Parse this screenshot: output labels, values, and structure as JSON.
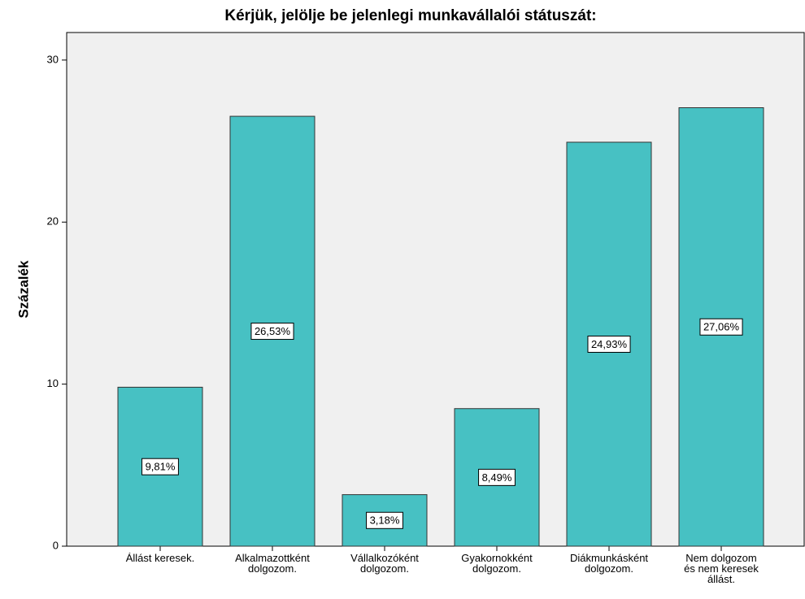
{
  "chart_data": {
    "type": "bar",
    "title": "Kérjük, jelölje be jelenlegi munkavállalói státuszát:",
    "y_label": "Százalék",
    "categories": [
      "Állást keresek.",
      "Alkalmazottként dolgozom.",
      "Vállalkozóként dolgozom.",
      "Gyakornokként dolgozom.",
      "Diákmunkásként dolgozom.",
      "Nem dolgozom és nem keresek állást."
    ],
    "values": [
      9.81,
      26.53,
      3.18,
      8.49,
      24.93,
      27.06
    ],
    "value_labels": [
      "9,81%",
      "26,53%",
      "3,18%",
      "8,49%",
      "24,93%",
      "27,06%"
    ],
    "color": "#47c1c3",
    "ylim": [
      0,
      31.7
    ],
    "yticks": [
      0,
      10,
      20,
      30
    ],
    "grid": false
  }
}
